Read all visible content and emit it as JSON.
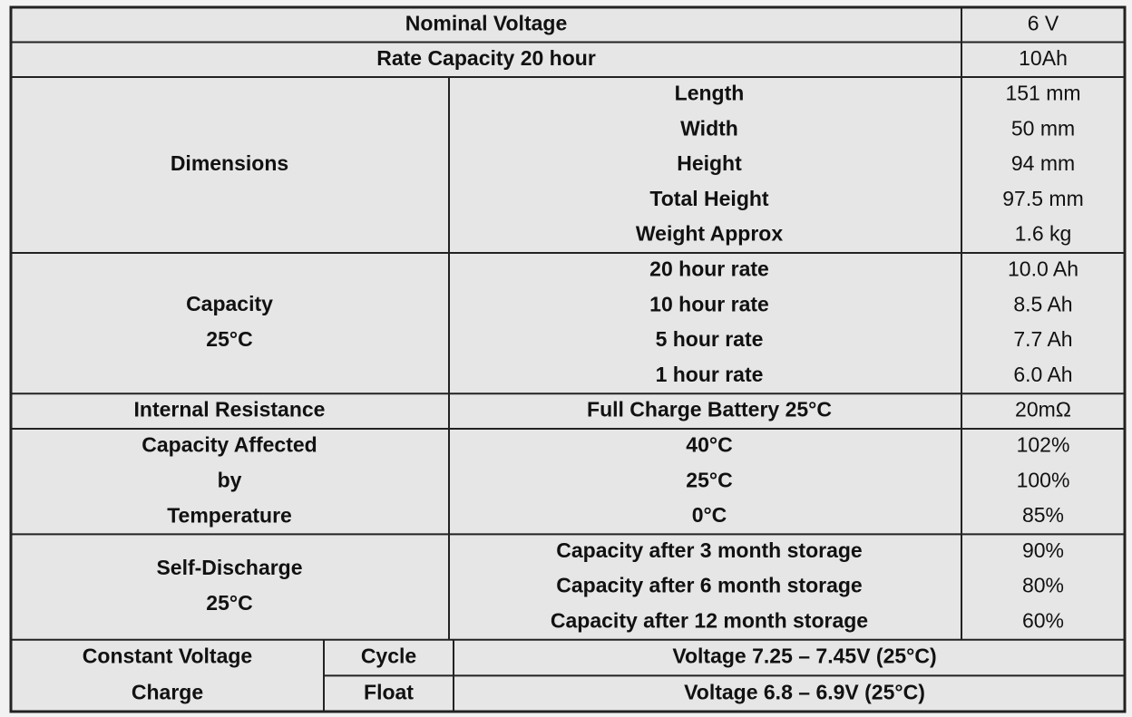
{
  "table": {
    "rows": [
      {
        "label": "Nominal Voltage",
        "value": "6 V"
      },
      {
        "label": "Rate Capacity 20 hour",
        "value": "10Ah"
      }
    ],
    "groups": [
      {
        "label": [
          "Dimensions"
        ],
        "items": [
          {
            "label": "Length",
            "value": "151 mm"
          },
          {
            "label": "Width",
            "value": "50 mm"
          },
          {
            "label": "Height",
            "value": "94 mm"
          },
          {
            "label": "Total Height",
            "value": "97.5 mm"
          },
          {
            "label": "Weight Approx",
            "value": "1.6 kg"
          }
        ]
      },
      {
        "label": [
          "Capacity",
          "25°C"
        ],
        "items": [
          {
            "label": "20 hour rate",
            "value": "10.0 Ah"
          },
          {
            "label": "10 hour rate",
            "value": "8.5 Ah"
          },
          {
            "label": "5 hour rate",
            "value": "7.7 Ah"
          },
          {
            "label": "1 hour rate",
            "value": "6.0 Ah"
          }
        ]
      },
      {
        "label": [
          "Internal Resistance"
        ],
        "items": [
          {
            "label": "Full Charge Battery 25°C",
            "value": "20mΩ"
          }
        ]
      },
      {
        "label": [
          "Capacity Affected",
          "by",
          "Temperature"
        ],
        "items": [
          {
            "label": "40°C",
            "value": "102%"
          },
          {
            "label": "25°C",
            "value": "100%"
          },
          {
            "label": "0°C",
            "value": "85%"
          }
        ]
      },
      {
        "label": [
          "Self-Discharge",
          "25°C"
        ],
        "items": [
          {
            "label": "Capacity after  3  month storage",
            "value": "90%"
          },
          {
            "label": "Capacity after  6  month storage",
            "value": "80%"
          },
          {
            "label": "Capacity after 12 month storage",
            "value": "60%"
          }
        ]
      }
    ],
    "charge": {
      "label": [
        "Constant Voltage",
        "Charge"
      ],
      "modes": [
        {
          "label": "Cycle",
          "value": "Voltage 7.25 – 7.45V (25°C)"
        },
        {
          "label": "Float",
          "value": "Voltage 6.8 – 6.9V (25°C)"
        }
      ]
    }
  }
}
